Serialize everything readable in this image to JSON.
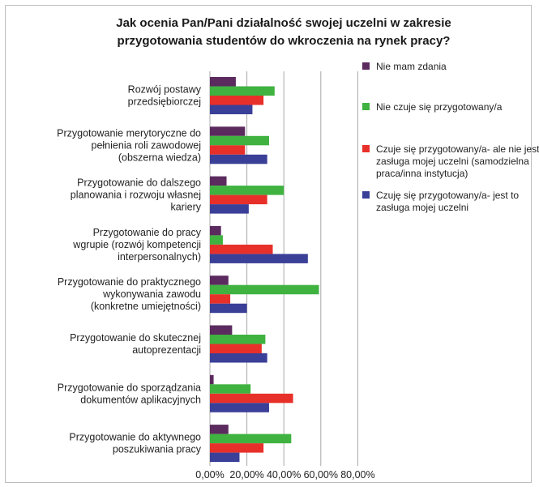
{
  "chart_data": {
    "type": "bar",
    "orientation": "horizontal",
    "title": [
      "Jak ocenia Pan/Pani działalność swojej uczelni w zakresie",
      "przygotowania studentów do wkroczenia na rynek pracy?"
    ],
    "categories": [
      [
        "Rozwój postawy",
        "przedsiębiorczej"
      ],
      [
        "Przygotowanie merytoryczne do",
        "pełnienia roli zawodowej",
        "(obszerna wiedza)"
      ],
      [
        "Przygotowanie do dalszego",
        "planowania i rozwoju własnej",
        "kariery"
      ],
      [
        "Przygotowanie do pracy",
        "wgrupie (rozwój kompetencji",
        "interpersonalnych)"
      ],
      [
        "Przygotowanie do praktycznego",
        "wykonywania zawodu",
        "(konkretne umiejętności)"
      ],
      [
        "Przygotowanie do skutecznej",
        "autoprezentacji"
      ],
      [
        "Przygotowanie do sporządzania",
        "dokumentów aplikacyjnych"
      ],
      [
        "Przygotowanie do aktywnego",
        "poszukiwania pracy"
      ]
    ],
    "series": [
      {
        "name": "Nie mam zdania",
        "color": "#5b2a5e",
        "values": [
          14,
          19,
          9,
          6,
          10,
          12,
          2,
          10
        ]
      },
      {
        "name": "Nie czuje się przygotowany/a",
        "color": "#3fb240",
        "values": [
          35,
          32,
          40,
          7,
          59,
          30,
          22,
          44
        ]
      },
      {
        "name": "Czuje się przygotowany/a- ale nie jest to zasługa mojej uczelni (samodzielna praca/inna instytucja)",
        "legend_lines": [
          "Czuje się przygotowany/a- ale nie jest to",
          "zasługa mojej uczelni (samodzielna",
          "praca/inna instytucja)"
        ],
        "color": "#e8302a",
        "values": [
          29,
          19,
          31,
          34,
          11,
          28,
          45,
          29
        ]
      },
      {
        "name": "Czuję się przygotowany/a- jest to zasługa mojej uczelni",
        "legend_lines": [
          "Czuję się przygotowany/a- jest to",
          "zasługa mojej uczelni"
        ],
        "color": "#3a3f97",
        "values": [
          23,
          31,
          21,
          53,
          20,
          31,
          32,
          16
        ]
      }
    ],
    "x_ticks": [
      "0,00%",
      "20,00%",
      "40,00%",
      "60,00%",
      "80,00%"
    ],
    "xlim": [
      0,
      80
    ],
    "grid": true,
    "legend_position": "right"
  }
}
